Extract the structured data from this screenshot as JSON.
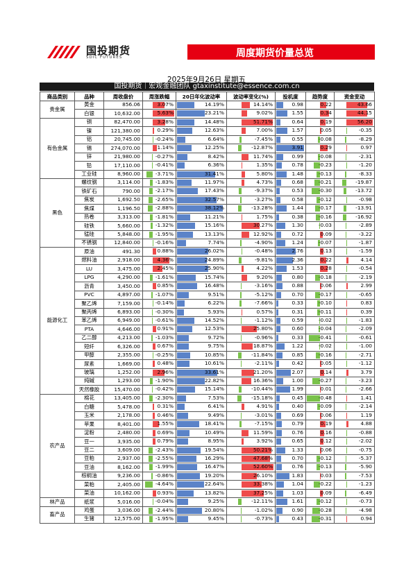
{
  "header": {
    "logo_cn": "国投期货",
    "logo_en": "SDIC FUTURES",
    "banner_title": "周度期货价量总览",
    "date": "2025年9月26日 星期五",
    "subtitle": "国投期货｜宏观金融团队 gtaxinstitute@essence.com.cn"
  },
  "colors": {
    "brand_red": "#e60012",
    "up_red": "#ee4b4b",
    "down_green": "#79c24a",
    "bar_blue": "#5b83c8"
  },
  "columns": [
    "商品类别",
    "品种",
    "周收盘价",
    "周涨跌幅",
    "20日年化波动率",
    "波动率变化(%)",
    "投机度",
    "趋势度",
    "资金变动"
  ],
  "rows": [
    {
      "cat": "贵金属",
      "name": "黄金",
      "close": "856.06",
      "chg": "3.07%",
      "vol": "14.19%",
      "vc": "14.14%",
      "liq": "0.98",
      "tr": "0.22",
      "fc": "43.66"
    },
    {
      "cat": "贵金属",
      "name": "白银",
      "close": "10,632.00",
      "chg": "5.63%",
      "vol": "23.21%",
      "vc": "9.02%",
      "liq": "1.55",
      "tr": "0.34",
      "fc": "44.15"
    },
    {
      "cat": "有色金属",
      "name": "铜",
      "close": "82,470.00",
      "chg": "3.28%",
      "vol": "14.48%",
      "vc": "51.71%",
      "liq": "0.64",
      "tr": "0.19",
      "fc": "56.20"
    },
    {
      "cat": "有色金属",
      "name": "镍",
      "close": "121,380.00",
      "chg": "0.29%",
      "vol": "12.63%",
      "vc": "7.00%",
      "liq": "1.57",
      "tr": "0.05",
      "fc": "-0.35"
    },
    {
      "cat": "有色金属",
      "name": "铝",
      "close": "20,745.00",
      "chg": "-0.24%",
      "vol": "6.64%",
      "vc": "-7.45%",
      "liq": "0.55",
      "tr": "-0.08",
      "fc": "-8.29"
    },
    {
      "cat": "有色金属",
      "name": "锡",
      "close": "274,070.00",
      "chg": "1.14%",
      "vol": "12.25%",
      "vc": "-12.87%",
      "liq": "3.91",
      "tr": "0.29",
      "fc": "0.97"
    },
    {
      "cat": "有色金属",
      "name": "锌",
      "close": "21,980.00",
      "chg": "-0.27%",
      "vol": "8.42%",
      "vc": "11.74%",
      "liq": "0.99",
      "tr": "-0.08",
      "fc": "-2.31"
    },
    {
      "cat": "有色金属",
      "name": "铅",
      "close": "17,110.00",
      "chg": "-0.41%",
      "vol": "6.36%",
      "vc": "1.35%",
      "liq": "0.78",
      "tr": "-0.23",
      "fc": "-1.20"
    },
    {
      "cat": "有色金属",
      "name": "工业硅",
      "close": "8,960.00",
      "chg": "-3.71%",
      "vol": "31.41%",
      "vc": "5.80%",
      "liq": "1.48",
      "tr": "-0.13",
      "fc": "-8.33"
    },
    {
      "cat": "黑色",
      "name": "螺纹钢",
      "close": "3,114.00",
      "chg": "-1.83%",
      "vol": "11.97%",
      "vc": "4.73%",
      "liq": "0.68",
      "tr": "-0.21",
      "fc": "-19.87"
    },
    {
      "cat": "黑色",
      "name": "铁矿石",
      "close": "790.00",
      "chg": "-2.17%",
      "vol": "17.43%",
      "vc": "-9.37%",
      "liq": "0.53",
      "tr": "-0.30",
      "fc": "-13.72"
    },
    {
      "cat": "黑色",
      "name": "焦炭",
      "close": "1,692.50",
      "chg": "-2.65%",
      "vol": "32.57%",
      "vc": "-3.27%",
      "liq": "0.58",
      "tr": "-0.12",
      "fc": "-0.98"
    },
    {
      "cat": "黑色",
      "name": "焦煤",
      "close": "1,196.50",
      "chg": "-2.88%",
      "vol": "38.12%",
      "vc": "-13.28%",
      "liq": "1.44",
      "tr": "-0.17",
      "fc": "-13.91"
    },
    {
      "cat": "黑色",
      "name": "热卷",
      "close": "3,313.00",
      "chg": "-1.81%",
      "vol": "11.21%",
      "vc": "1.75%",
      "liq": "0.38",
      "tr": "-0.16",
      "fc": "-16.92"
    },
    {
      "cat": "黑色",
      "name": "硅铁",
      "close": "5,660.00",
      "chg": "-1.32%",
      "vol": "15.16%",
      "vc": "30.27%",
      "liq": "1.30",
      "tr": "-0.03",
      "fc": "-2.89"
    },
    {
      "cat": "黑色",
      "name": "锰硅",
      "close": "5,848.00",
      "chg": "-1.95%",
      "vol": "13.13%",
      "vc": "12.92%",
      "liq": "0.72",
      "tr": "0.09",
      "fc": "-3.22"
    },
    {
      "cat": "黑色",
      "name": "不锈钢",
      "close": "12,840.00",
      "chg": "-0.16%",
      "vol": "7.74%",
      "vc": "-4.90%",
      "liq": "1.24",
      "tr": "-0.07",
      "fc": "-1.87"
    },
    {
      "cat": "能源化工",
      "name": "原油",
      "close": "491.30",
      "chg": "0.88%",
      "vol": "26.02%",
      "vc": "-0.48%",
      "liq": "2.76",
      "tr": "0.13",
      "fc": "-1.59"
    },
    {
      "cat": "能源化工",
      "name": "燃料油",
      "close": "2,918.00",
      "chg": "4.36%",
      "vol": "24.89%",
      "vc": "-9.81%",
      "liq": "2.36",
      "tr": "0.22",
      "fc": "4.14"
    },
    {
      "cat": "能源化工",
      "name": "LU",
      "close": "3,475.00",
      "chg": "2.45%",
      "vol": "25.90%",
      "vc": "4.22%",
      "liq": "1.53",
      "tr": "0.28",
      "fc": "-0.54"
    },
    {
      "cat": "能源化工",
      "name": "LPG",
      "close": "4,290.00",
      "chg": "-1.61%",
      "vol": "15.74%",
      "vc": "9.20%",
      "liq": "0.80",
      "tr": "-0.18",
      "fc": "-2.19"
    },
    {
      "cat": "能源化工",
      "name": "沥青",
      "close": "3,450.00",
      "chg": "0.85%",
      "vol": "16.48%",
      "vc": "-3.16%",
      "liq": "0.88",
      "tr": "0.06",
      "fc": "2.99"
    },
    {
      "cat": "能源化工",
      "name": "PVC",
      "close": "4,897.00",
      "chg": "-1.07%",
      "vol": "9.51%",
      "vc": "-5.12%",
      "liq": "0.70",
      "tr": "-0.17",
      "fc": "-0.65"
    },
    {
      "cat": "能源化工",
      "name": "聚乙烯",
      "close": "7,159.00",
      "chg": "-0.14%",
      "vol": "6.22%",
      "vc": "-7.66%",
      "liq": "0.33",
      "tr": "-0.10",
      "fc": "0.83"
    },
    {
      "cat": "能源化工",
      "name": "聚丙烯",
      "close": "6,893.00",
      "chg": "-0.30%",
      "vol": "5.93%",
      "vc": "0.57%",
      "liq": "0.31",
      "tr": "-0.11",
      "fc": "0.39"
    },
    {
      "cat": "能源化工",
      "name": "苯乙烯",
      "close": "6,949.00",
      "chg": "-0.61%",
      "vol": "14.52%",
      "vc": "-1.12%",
      "liq": "0.59",
      "tr": "-0.02",
      "fc": "-1.83"
    },
    {
      "cat": "能源化工",
      "name": "PTA",
      "close": "4,646.00",
      "chg": "0.91%",
      "vol": "12.53%",
      "vc": "25.80%",
      "liq": "0.60",
      "tr": "-0.04",
      "fc": "-2.09"
    },
    {
      "cat": "能源化工",
      "name": "乙二醇",
      "close": "4,213.00",
      "chg": "-1.03%",
      "vol": "9.72%",
      "vc": "-0.96%",
      "liq": "0.33",
      "tr": "-0.41",
      "fc": "-0.61"
    },
    {
      "cat": "能源化工",
      "name": "短纤",
      "close": "6,326.00",
      "chg": "0.67%",
      "vol": "9.75%",
      "vc": "18.87%",
      "liq": "1.22",
      "tr": "-0.02",
      "fc": "-1.00"
    },
    {
      "cat": "能源化工",
      "name": "甲醇",
      "close": "2,355.00",
      "chg": "-0.25%",
      "vol": "10.85%",
      "vc": "-11.84%",
      "liq": "0.85",
      "tr": "-0.16",
      "fc": "-2.71"
    },
    {
      "cat": "能源化工",
      "name": "尿素",
      "close": "1,669.00",
      "chg": "0.48%",
      "vol": "10.61%",
      "vc": "-2.11%",
      "liq": "0.42",
      "tr": "0.05",
      "fc": "-1.12"
    },
    {
      "cat": "能源化工",
      "name": "玻璃",
      "close": "1,252.00",
      "chg": "2.96%",
      "vol": "33.61%",
      "vc": "21.20%",
      "liq": "2.07",
      "tr": "0.14",
      "fc": "3.79"
    },
    {
      "cat": "能源化工",
      "name": "纯碱",
      "close": "1,293.00",
      "chg": "-1.90%",
      "vol": "22.82%",
      "vc": "16.36%",
      "liq": "1.00",
      "tr": "-0.27",
      "fc": "-3.23"
    },
    {
      "cat": "能源化工",
      "name": "天然橡胶",
      "close": "15,470.00",
      "chg": "-0.42%",
      "vol": "15.14%",
      "vc": "-10.44%",
      "liq": "1.99",
      "tr": "0.01",
      "fc": "-2.66"
    },
    {
      "cat": "农产品",
      "name": "棉花",
      "close": "13,405.00",
      "chg": "-2.30%",
      "vol": "7.53%",
      "vc": "-15.18%",
      "liq": "0.45",
      "tr": "-0.48",
      "fc": "1.41"
    },
    {
      "cat": "农产品",
      "name": "白糖",
      "close": "5,478.00",
      "chg": "0.31%",
      "vol": "6.41%",
      "vc": "4.91%",
      "liq": "0.40",
      "tr": "-0.09",
      "fc": "-2.14"
    },
    {
      "cat": "农产品",
      "name": "玉米",
      "close": "2,178.00",
      "chg": "0.46%",
      "vol": "9.49%",
      "vc": "-3.01%",
      "liq": "0.69",
      "tr": "0.06",
      "fc": "1.19"
    },
    {
      "cat": "农产品",
      "name": "苹果",
      "close": "8,401.00",
      "chg": "1.55%",
      "vol": "18.41%",
      "vc": "-7.15%",
      "liq": "0.79",
      "tr": "0.19",
      "fc": "4.88"
    },
    {
      "cat": "农产品",
      "name": "淀粉",
      "close": "2,480.00",
      "chg": "0.69%",
      "vol": "10.49%",
      "vc": "11.59%",
      "liq": "0.76",
      "tr": "0.16",
      "fc": "-0.88"
    },
    {
      "cat": "农产品",
      "name": "豆一",
      "close": "3,935.00",
      "chg": "0.79%",
      "vol": "8.95%",
      "vc": "3.92%",
      "liq": "0.65",
      "tr": "0.12",
      "fc": "-2.02"
    },
    {
      "cat": "农产品",
      "name": "豆二",
      "close": "3,609.00",
      "chg": "-2.43%",
      "vol": "19.54%",
      "vc": "50.21%",
      "liq": "1.33",
      "tr": "0.06",
      "fc": "-0.75"
    },
    {
      "cat": "农产品",
      "name": "豆粕",
      "close": "2,937.00",
      "chg": "-2.55%",
      "vol": "16.29%",
      "vc": "47.68%",
      "liq": "0.70",
      "tr": "-0.12",
      "fc": "-5.37"
    },
    {
      "cat": "农产品",
      "name": "豆油",
      "close": "8,162.00",
      "chg": "-1.99%",
      "vol": "16.47%",
      "vc": "52.60%",
      "liq": "0.76",
      "tr": "-0.13",
      "fc": "-5.90"
    },
    {
      "cat": "农产品",
      "name": "棕榈油",
      "close": "9,236.00",
      "chg": "-0.86%",
      "vol": "19.20%",
      "vc": "26.10%",
      "liq": "1.83",
      "tr": "0.03",
      "fc": "-7.53"
    },
    {
      "cat": "农产品",
      "name": "菜粕",
      "close": "2,405.00",
      "chg": "-4.64%",
      "vol": "22.64%",
      "vc": "33.38%",
      "liq": "1.04",
      "tr": "-0.22",
      "fc": "-1.23"
    },
    {
      "cat": "农产品",
      "name": "菜油",
      "close": "10,162.00",
      "chg": "0.93%",
      "vol": "13.82%",
      "vc": "37.25%",
      "liq": "1.03",
      "tr": "0.09",
      "fc": "-6.49"
    },
    {
      "cat": "林产品",
      "name": "纸浆",
      "close": "5,016.00",
      "chg": "-0.04%",
      "vol": "9.25%",
      "vc": "-12.11%",
      "liq": "1.61",
      "tr": "-0.12",
      "fc": "-0.73"
    },
    {
      "cat": "畜产品",
      "name": "鸡蛋",
      "close": "3,036.00",
      "chg": "-2.44%",
      "vol": "20.80%",
      "vc": "-1.02%",
      "liq": "0.90",
      "tr": "-0.28",
      "fc": "-4.98"
    },
    {
      "cat": "畜产品",
      "name": "生猪",
      "close": "12,575.00",
      "chg": "-1.95%",
      "vol": "9.45%",
      "vc": "-0.73%",
      "liq": "0.43",
      "tr": "-0.31",
      "fc": "0.94"
    }
  ]
}
